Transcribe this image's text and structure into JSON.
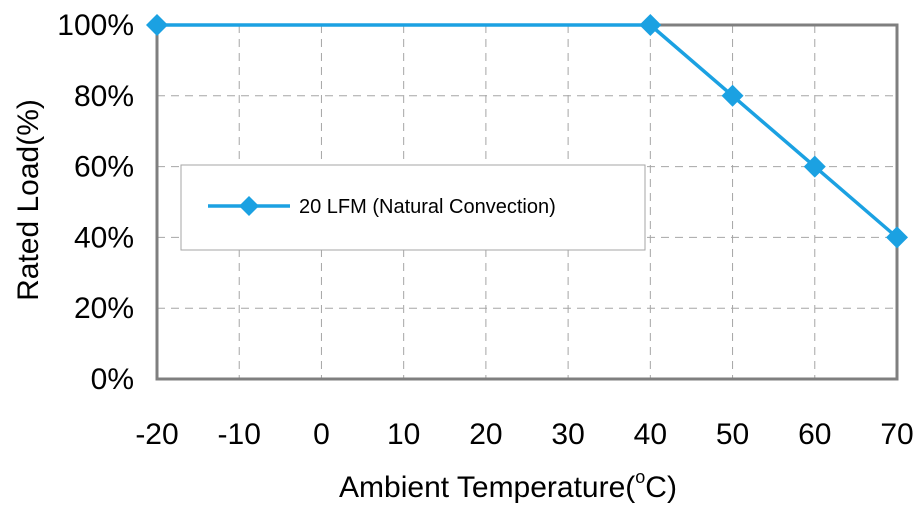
{
  "chart_data": {
    "type": "line",
    "title": "",
    "xlabel": "Ambient Temperature(°C)",
    "xlabel_main": "Ambient Temperature(",
    "xlabel_deg": "o",
    "xlabel_unit": "C)",
    "ylabel": "Rated Load(%)",
    "x_categories": [
      "-20",
      "-10",
      "0",
      "10",
      "20",
      "30",
      "40",
      "50",
      "60",
      "70"
    ],
    "y_ticks": [
      "0%",
      "20%",
      "40%",
      "60%",
      "80%",
      "100%"
    ],
    "ylim": [
      0,
      100
    ],
    "grid": true,
    "legend_position": "center-left",
    "series": [
      {
        "name": "20 LFM (Natural Convection)",
        "color": "#1ba1e2",
        "points": [
          {
            "x": "-20",
            "y": 100
          },
          {
            "x": "40",
            "y": 100
          },
          {
            "x": "50",
            "y": 80
          },
          {
            "x": "60",
            "y": 60
          },
          {
            "x": "70",
            "y": 40
          }
        ]
      }
    ]
  }
}
